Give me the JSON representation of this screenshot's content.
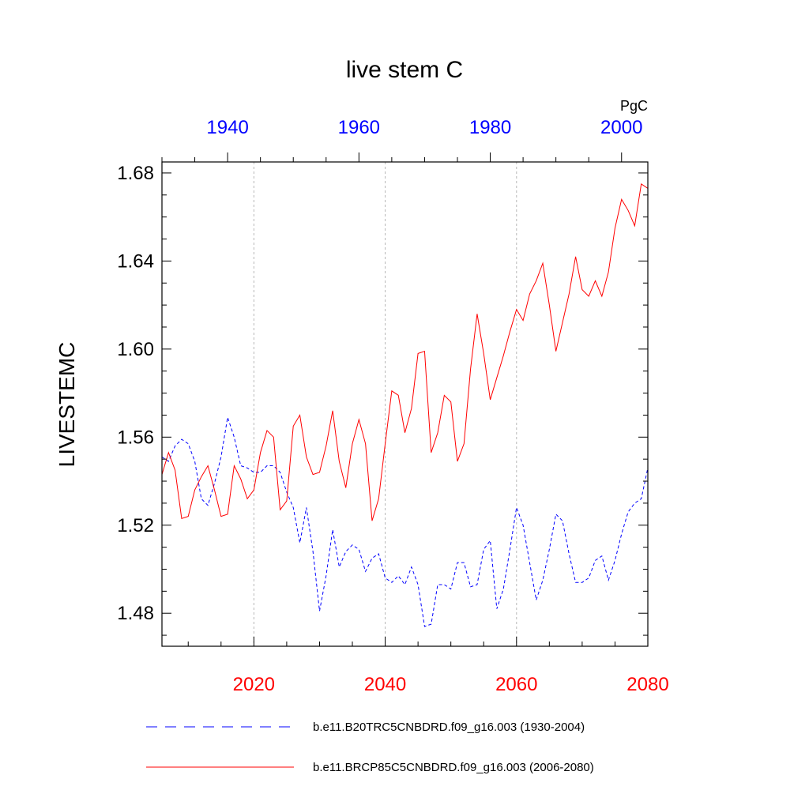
{
  "chart_data": {
    "type": "line",
    "title": "live stem C",
    "units": "PgC",
    "ylabel": "LIVESTEMC",
    "ylim": [
      1.465,
      1.685
    ],
    "yticks": [
      "1.48",
      "1.52",
      "1.56",
      "1.60",
      "1.64",
      "1.68"
    ],
    "top_axis": {
      "range": [
        1930,
        2004
      ],
      "ticks": [
        "1940",
        "1960",
        "1980",
        "2000"
      ],
      "color": "#0000ff"
    },
    "bottom_axis": {
      "range": [
        2006,
        2080
      ],
      "ticks": [
        "2020",
        "2040",
        "2060",
        "2080"
      ],
      "color": "#ff0000"
    },
    "series": [
      {
        "name": "b.e11.B20TRC5CNBDRD.f09_g16.003 (1930-2004)",
        "axis": "top",
        "color": "#0000ff",
        "style": "dashed",
        "x": [
          1930,
          1931,
          1932,
          1933,
          1934,
          1935,
          1936,
          1937,
          1938,
          1939,
          1940,
          1941,
          1942,
          1943,
          1944,
          1945,
          1946,
          1947,
          1948,
          1949,
          1950,
          1951,
          1952,
          1953,
          1954,
          1955,
          1956,
          1957,
          1958,
          1959,
          1960,
          1961,
          1962,
          1963,
          1964,
          1965,
          1966,
          1967,
          1968,
          1969,
          1970,
          1971,
          1972,
          1973,
          1974,
          1975,
          1976,
          1977,
          1978,
          1979,
          1980,
          1981,
          1982,
          1983,
          1984,
          1985,
          1986,
          1987,
          1988,
          1989,
          1990,
          1991,
          1992,
          1993,
          1994,
          1995,
          1996,
          1997,
          1998,
          1999,
          2000,
          2001,
          2002,
          2003,
          2004
        ],
        "values": [
          1.551,
          1.549,
          1.556,
          1.559,
          1.557,
          1.549,
          1.532,
          1.529,
          1.539,
          1.551,
          1.569,
          1.56,
          1.547,
          1.546,
          1.544,
          1.544,
          1.547,
          1.547,
          1.544,
          1.535,
          1.528,
          1.512,
          1.528,
          1.508,
          1.481,
          1.497,
          1.518,
          1.501,
          1.508,
          1.511,
          1.509,
          1.499,
          1.505,
          1.507,
          1.496,
          1.494,
          1.497,
          1.493,
          1.501,
          1.493,
          1.474,
          1.475,
          1.493,
          1.493,
          1.491,
          1.503,
          1.503,
          1.492,
          1.493,
          1.509,
          1.513,
          1.482,
          1.491,
          1.509,
          1.528,
          1.52,
          1.503,
          1.486,
          1.495,
          1.509,
          1.525,
          1.522,
          1.507,
          1.494,
          1.494,
          1.496,
          1.504,
          1.506,
          1.495,
          1.504,
          1.516,
          1.526,
          1.53,
          1.532,
          1.546
        ]
      },
      {
        "name": "b.e11.BRCP85C5CNBDRD.f09_g16.003 (2006-2080)",
        "axis": "bottom",
        "color": "#ff0000",
        "style": "solid",
        "x": [
          2006,
          2007,
          2008,
          2009,
          2010,
          2011,
          2012,
          2013,
          2014,
          2015,
          2016,
          2017,
          2018,
          2019,
          2020,
          2021,
          2022,
          2023,
          2024,
          2025,
          2026,
          2027,
          2028,
          2029,
          2030,
          2031,
          2032,
          2033,
          2034,
          2035,
          2036,
          2037,
          2038,
          2039,
          2040,
          2041,
          2042,
          2043,
          2044,
          2045,
          2046,
          2047,
          2048,
          2049,
          2050,
          2051,
          2052,
          2053,
          2054,
          2055,
          2056,
          2057,
          2058,
          2059,
          2060,
          2061,
          2062,
          2063,
          2064,
          2065,
          2066,
          2067,
          2068,
          2069,
          2070,
          2071,
          2072,
          2073,
          2074,
          2075,
          2076,
          2077,
          2078,
          2079,
          2080
        ],
        "values": [
          1.543,
          1.553,
          1.545,
          1.523,
          1.524,
          1.536,
          1.542,
          1.547,
          1.536,
          1.524,
          1.525,
          1.547,
          1.541,
          1.532,
          1.536,
          1.553,
          1.563,
          1.56,
          1.527,
          1.531,
          1.565,
          1.57,
          1.551,
          1.543,
          1.544,
          1.556,
          1.572,
          1.549,
          1.537,
          1.557,
          1.568,
          1.557,
          1.522,
          1.532,
          1.557,
          1.581,
          1.579,
          1.562,
          1.573,
          1.598,
          1.599,
          1.553,
          1.562,
          1.579,
          1.576,
          1.549,
          1.557,
          1.591,
          1.616,
          1.598,
          1.577,
          1.587,
          1.597,
          1.608,
          1.618,
          1.613,
          1.625,
          1.631,
          1.639,
          1.62,
          1.599,
          1.612,
          1.625,
          1.642,
          1.627,
          1.624,
          1.631,
          1.624,
          1.635,
          1.655,
          1.668,
          1.663,
          1.656,
          1.675,
          1.673
        ]
      }
    ],
    "legend_position": "bottom"
  }
}
